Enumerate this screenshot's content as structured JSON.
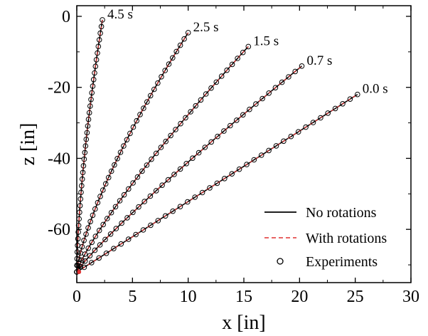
{
  "chart_data": {
    "type": "line",
    "title": "",
    "xlabel": "x [in]",
    "ylabel": "z [in]",
    "xlim": [
      0,
      30
    ],
    "ylim": [
      -75,
      3
    ],
    "xticks": [
      0,
      5,
      10,
      15,
      20,
      25,
      30
    ],
    "yticks": [
      0,
      -20,
      -40,
      -60
    ],
    "grid": false,
    "legend_position": "bottom-right",
    "legend": [
      {
        "label": "No rotations",
        "style": "solid",
        "color": "#000000"
      },
      {
        "label": "With rotations",
        "style": "dashed",
        "color": "#e03030"
      },
      {
        "label": "Experiments",
        "style": "open-circle",
        "color": "#000000"
      }
    ],
    "curves": [
      {
        "time_label": "4.5 s",
        "start": [
          0,
          -72
        ],
        "tip": [
          2.3,
          -1.0
        ],
        "exp": 1.55
      },
      {
        "time_label": "2.5 s",
        "start": [
          0,
          -72
        ],
        "tip": [
          10.0,
          -4.6
        ],
        "exp": 1.35
      },
      {
        "time_label": "1.5 s",
        "start": [
          0,
          -72
        ],
        "tip": [
          15.4,
          -8.5
        ],
        "exp": 1.2
      },
      {
        "time_label": "0.7 s",
        "start": [
          0,
          -72
        ],
        "tip": [
          20.2,
          -14.0
        ],
        "exp": 1.12
      },
      {
        "time_label": "0.0 s",
        "start": [
          0,
          -72
        ],
        "tip": [
          25.2,
          -22.0
        ],
        "exp": 1.0
      }
    ]
  }
}
